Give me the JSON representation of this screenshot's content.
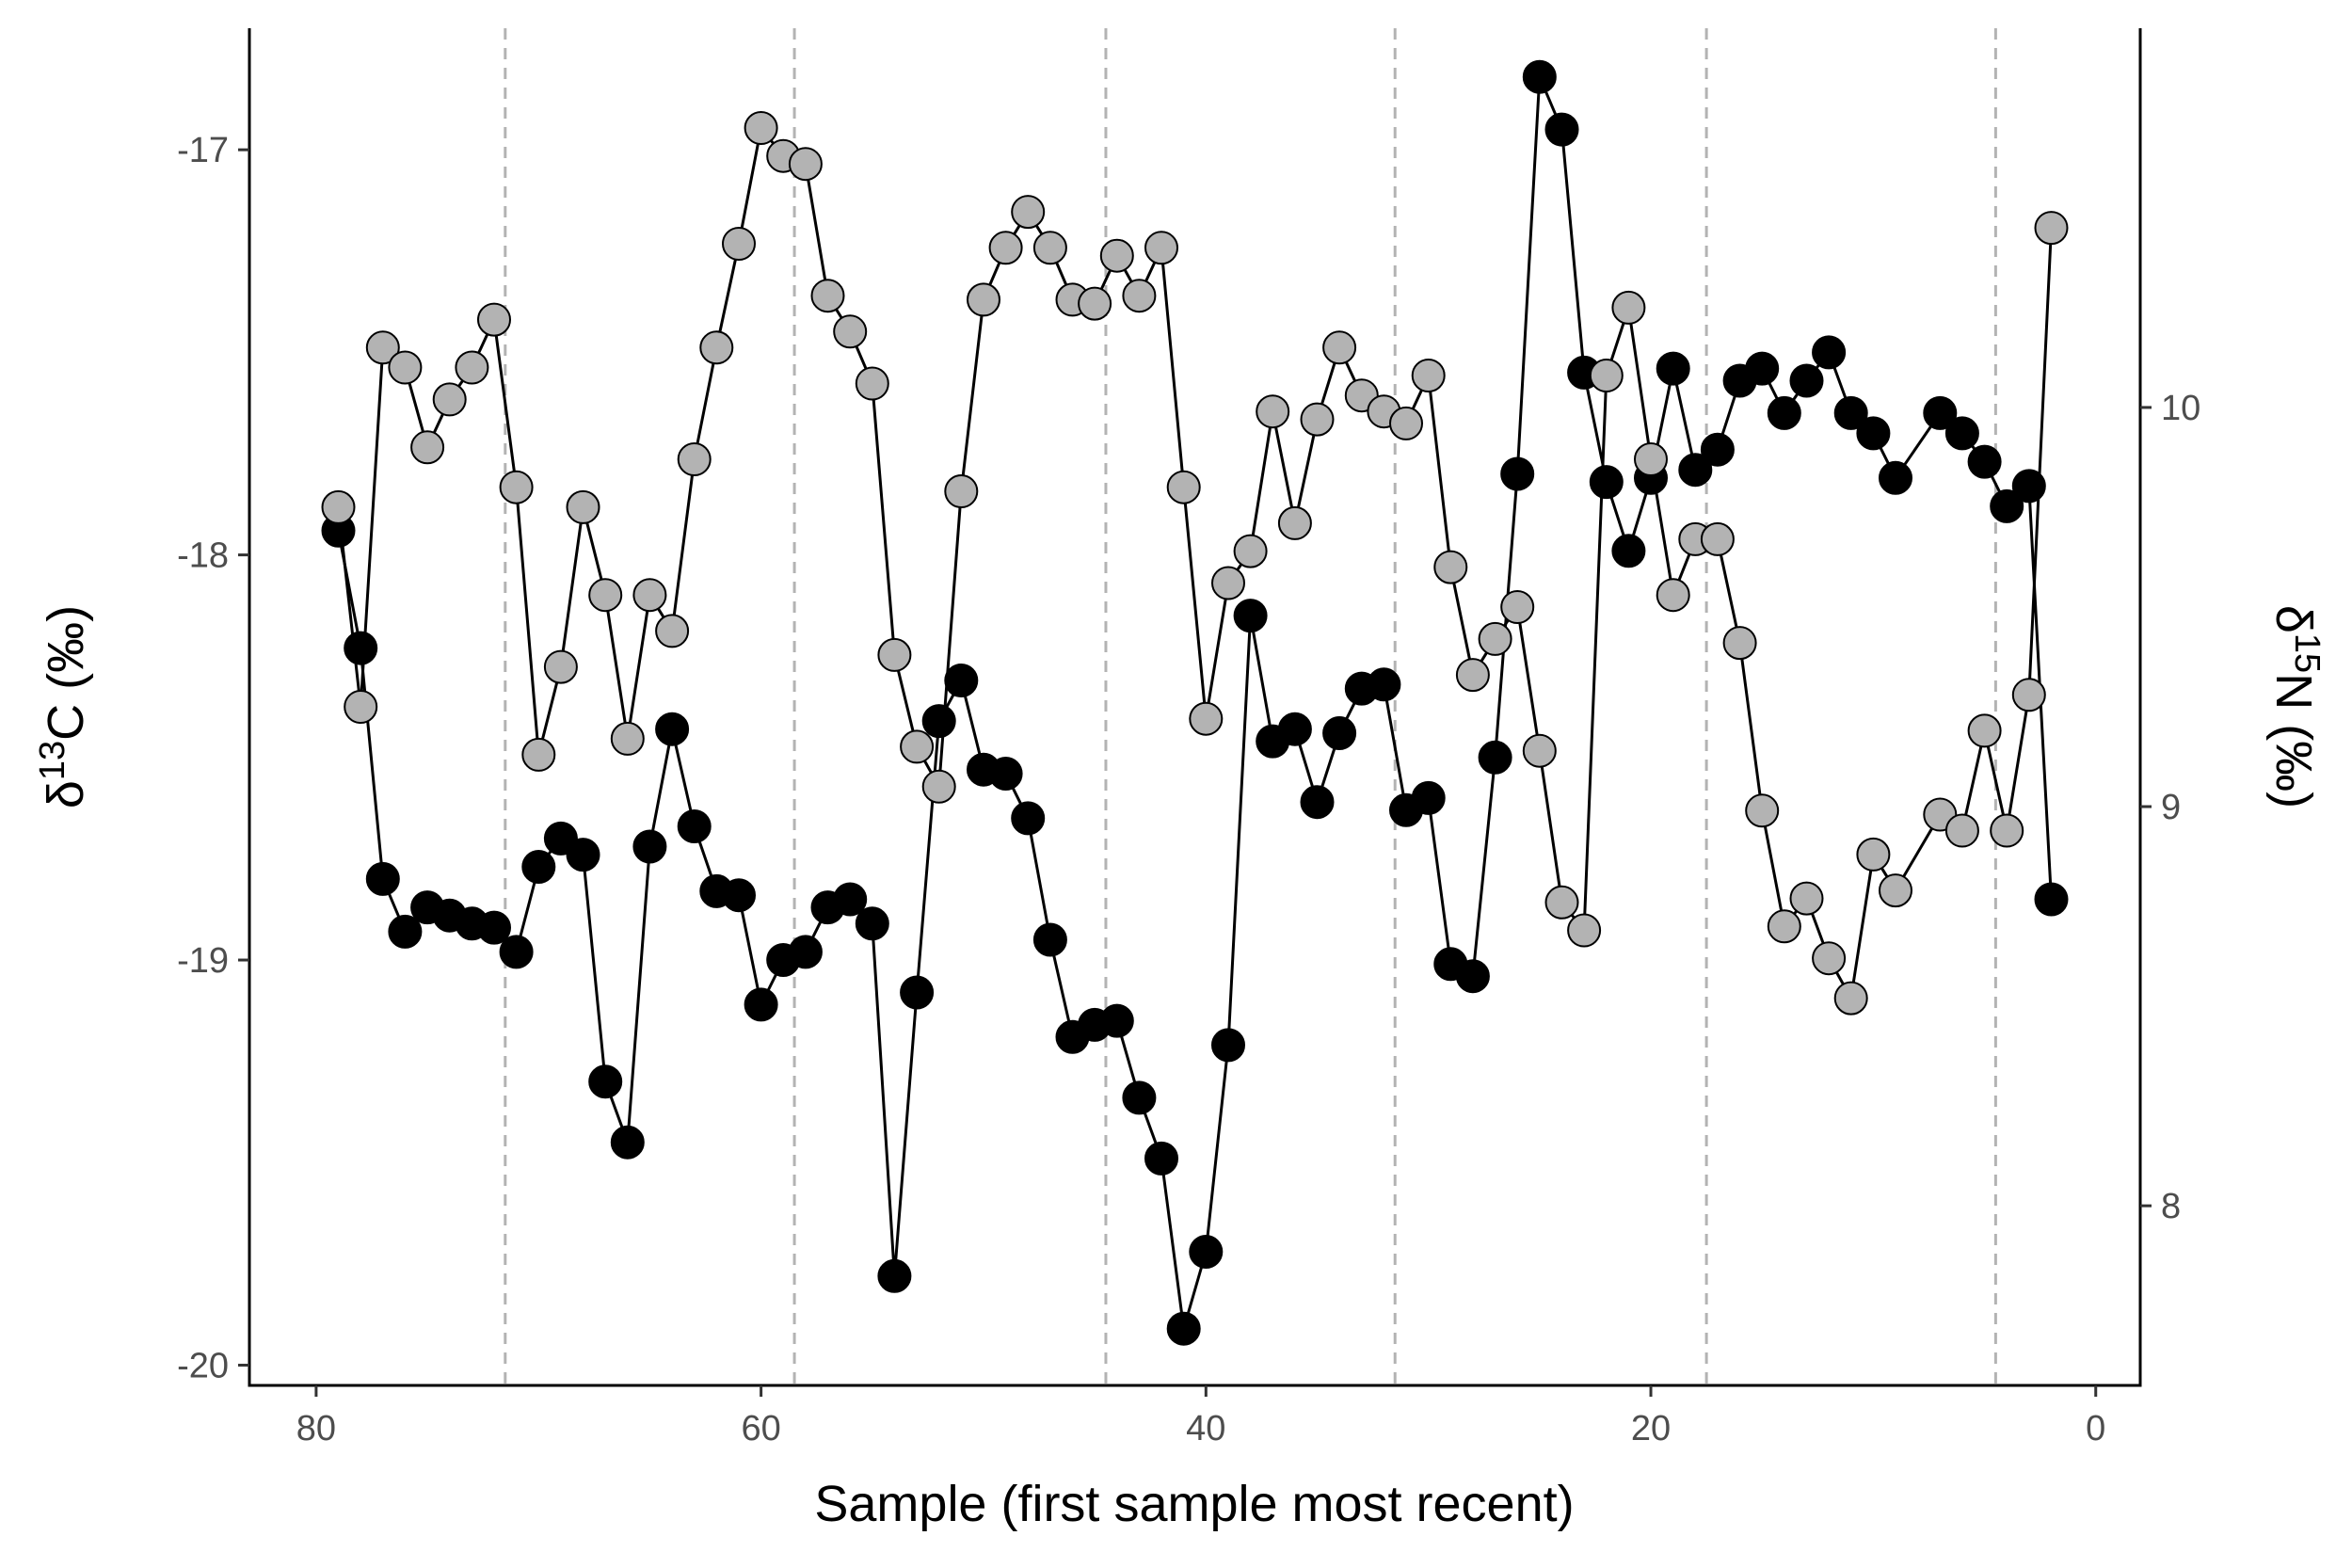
{
  "chart_data": {
    "type": "scatter",
    "xlabel": "Sample (first sample most recent)",
    "ylabel_left": {
      "delta": "δ",
      "sup": "13",
      "rest": "C (‰)"
    },
    "ylabel_right": {
      "delta": "δ",
      "sup": "15",
      "rest": "N (‰)"
    },
    "xlim": [
      83,
      -2
    ],
    "ylim_left": [
      -20.05,
      -16.7
    ],
    "ylim_right": [
      7.55,
      10.95
    ],
    "x_ticks": [
      80,
      60,
      40,
      20,
      0
    ],
    "y_left_ticks": [
      -17,
      -18,
      -19,
      -20
    ],
    "y_right_ticks": [
      10,
      9,
      8
    ],
    "vlines": [
      71.5,
      58.5,
      44.5,
      31.5,
      17.5,
      4.5
    ],
    "colors": {
      "d13C": "#000000",
      "d15N": "#b3b3b3",
      "vline": "#b3b3b3"
    },
    "series": [
      {
        "key": "d13C",
        "axis": "left",
        "x": [
          79,
          78,
          77,
          76,
          75,
          74,
          73,
          72,
          71,
          70,
          69,
          68,
          67,
          66,
          65,
          64,
          63,
          62,
          61,
          60,
          59,
          58,
          57,
          56,
          55,
          54,
          53,
          52,
          51,
          50,
          49,
          48,
          47,
          46,
          45,
          44,
          43,
          42,
          41,
          40,
          39,
          38,
          37,
          36,
          35,
          34,
          33,
          32,
          31,
          30,
          29,
          28,
          27,
          26,
          25,
          24,
          23,
          22,
          21,
          20,
          19,
          18,
          17,
          16,
          15,
          14,
          13,
          12,
          11,
          10,
          9,
          7,
          6,
          5,
          4,
          3,
          2
        ],
        "values": [
          -17.94,
          -18.23,
          -18.8,
          -18.93,
          -18.87,
          -18.89,
          -18.91,
          -18.92,
          -18.98,
          -18.77,
          -18.7,
          -18.74,
          -19.3,
          -19.45,
          -18.72,
          -18.43,
          -18.67,
          -18.83,
          -18.84,
          -19.11,
          -19.0,
          -18.98,
          -18.87,
          -18.85,
          -18.91,
          -19.78,
          -19.08,
          -18.41,
          -18.31,
          -18.53,
          -18.54,
          -18.65,
          -18.95,
          -19.19,
          -19.16,
          -19.15,
          -19.34,
          -19.49,
          -19.91,
          -19.72,
          -19.21,
          -18.15,
          -18.46,
          -18.43,
          -18.61,
          -18.44,
          -18.33,
          -18.32,
          -18.63,
          -18.6,
          -19.01,
          -19.04,
          -18.5,
          -17.8,
          -16.82,
          -16.95,
          -17.55,
          -17.82,
          -17.99,
          -17.81,
          -17.54,
          -17.79,
          -17.74,
          -17.57,
          -17.54,
          -17.65,
          -17.57,
          -17.5,
          -17.65,
          -17.7,
          -17.81,
          -17.65,
          -17.7,
          -17.77,
          -17.88,
          -17.83,
          -18.85
        ]
      },
      {
        "key": "d15N",
        "axis": "right",
        "x": [
          79,
          78,
          77,
          76,
          75,
          74,
          73,
          72,
          71,
          70,
          69,
          68,
          67,
          66,
          65,
          64,
          63,
          62,
          61,
          60,
          59,
          58,
          57,
          56,
          55,
          54,
          53,
          52,
          51,
          50,
          49,
          48,
          47,
          46,
          45,
          44,
          43,
          42,
          41,
          40,
          39,
          38,
          37,
          36,
          35,
          34,
          33,
          32,
          31,
          30,
          29,
          28,
          27,
          26,
          25,
          24,
          23,
          22,
          21,
          20,
          19,
          18,
          17,
          16,
          15,
          14,
          13,
          12,
          11,
          10,
          9,
          7,
          6,
          5,
          4,
          3,
          2
        ],
        "values": [
          9.75,
          9.25,
          10.15,
          10.1,
          9.9,
          10.02,
          10.1,
          10.22,
          9.8,
          9.13,
          9.35,
          9.75,
          9.53,
          9.17,
          9.53,
          9.44,
          9.87,
          10.15,
          10.41,
          10.7,
          10.63,
          10.61,
          10.28,
          10.19,
          10.06,
          9.38,
          9.15,
          9.05,
          9.79,
          10.27,
          10.4,
          10.49,
          10.4,
          10.27,
          10.26,
          10.38,
          10.28,
          10.4,
          9.8,
          9.22,
          9.56,
          9.64,
          9.99,
          9.71,
          9.97,
          10.15,
          10.03,
          9.99,
          9.96,
          10.08,
          9.6,
          9.33,
          9.42,
          9.5,
          9.14,
          8.76,
          8.69,
          10.08,
          10.25,
          9.87,
          9.53,
          9.67,
          9.67,
          9.41,
          8.99,
          8.7,
          8.77,
          8.62,
          8.52,
          8.88,
          8.79,
          8.98,
          8.94,
          9.19,
          8.94,
          9.28,
          10.45
        ]
      }
    ]
  }
}
